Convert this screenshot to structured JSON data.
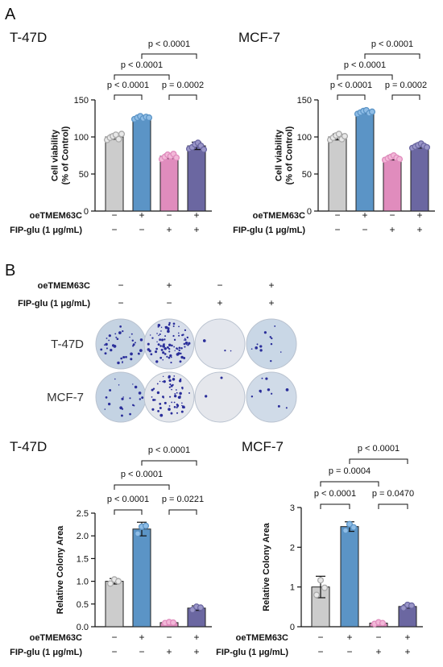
{
  "figure": {
    "panel_a": "A",
    "panel_b": "B",
    "conditions": {
      "oe_label": "oeTMEM63C",
      "fip_label": "FIP-glu (1 μg/mL)",
      "oe": [
        "−",
        "+",
        "−",
        "+"
      ],
      "fip": [
        "−",
        "−",
        "+",
        "+"
      ]
    },
    "colony_rows": [
      "T-47D",
      "MCF-7"
    ],
    "colony_dishes": [
      {
        "bg": "#c5d3e2",
        "dots": 36
      },
      {
        "bg": "#d7deea",
        "dots": 85
      },
      {
        "bg": "#e3e6ed",
        "dots": 3
      },
      {
        "bg": "#c9d7e6",
        "dots": 12
      },
      {
        "bg": "#c4d3e3",
        "dots": 20
      },
      {
        "bg": "#e4e7ec",
        "dots": 60
      },
      {
        "bg": "#e5e7ec",
        "dots": 2
      },
      {
        "bg": "#d0dbe8",
        "dots": 10
      }
    ],
    "dot_color": "#2a2e9a"
  },
  "colors": {
    "bars": [
      "#cccccc",
      "#5b94c6",
      "#e08cbd",
      "#6b67a1"
    ],
    "dots": [
      "#e8e8e8",
      "#8fbde6",
      "#f2b8d8",
      "#9a96c8"
    ]
  },
  "chart_data": [
    {
      "type": "bar",
      "title": "T-47D",
      "ylabel_lines": [
        "Cell viability",
        "(% of Control)"
      ],
      "ylim": [
        0,
        150
      ],
      "yticks": [
        "0",
        "50",
        "100",
        "150"
      ],
      "values": [
        100,
        126,
        74,
        88
      ],
      "errors": [
        3,
        2,
        3,
        5
      ],
      "points": [
        [
          96,
          99,
          101,
          103,
          97,
          104
        ],
        [
          124,
          126,
          128,
          125,
          127,
          126
        ],
        [
          70,
          73,
          76,
          74,
          77,
          72
        ],
        [
          84,
          86,
          90,
          92,
          88,
          83
        ]
      ],
      "comparisons": [
        {
          "a": 0,
          "b": 1,
          "p": "p < 0.0001",
          "level": 0
        },
        {
          "a": 2,
          "b": 3,
          "p": "p = 0.0002",
          "level": 0
        },
        {
          "a": 0,
          "b": 2,
          "p": "p < 0.0001",
          "level": 1
        },
        {
          "a": 1,
          "b": 3,
          "p": "p < 0.0001",
          "level": 2
        }
      ]
    },
    {
      "type": "bar",
      "title": "MCF-7",
      "ylabel_lines": [
        "Cell viability",
        "(% of Control)"
      ],
      "ylim": [
        0,
        150
      ],
      "yticks": [
        "0",
        "50",
        "100",
        "150"
      ],
      "values": [
        100,
        134,
        72,
        88
      ],
      "errors": [
        4,
        2,
        3,
        3
      ],
      "points": [
        [
          96,
          99,
          102,
          104,
          97,
          101
        ],
        [
          131,
          133,
          135,
          136,
          132,
          134
        ],
        [
          69,
          71,
          73,
          75,
          72,
          70
        ],
        [
          85,
          87,
          89,
          91,
          88,
          86
        ]
      ],
      "comparisons": [
        {
          "a": 0,
          "b": 1,
          "p": "p < 0.0001",
          "level": 0
        },
        {
          "a": 2,
          "b": 3,
          "p": "p = 0.0002",
          "level": 0
        },
        {
          "a": 0,
          "b": 2,
          "p": "p < 0.0001",
          "level": 1
        },
        {
          "a": 1,
          "b": 3,
          "p": "p < 0.0001",
          "level": 2
        }
      ]
    },
    {
      "type": "bar",
      "title": "T-47D",
      "ylabel_lines": [
        "Relative Colony Area"
      ],
      "ylim": [
        0,
        2.5
      ],
      "yticks": [
        "0.0",
        "0.5",
        "1.0",
        "1.5",
        "2.0",
        "2.5"
      ],
      "values": [
        1.0,
        2.15,
        0.09,
        0.41
      ],
      "errors": [
        0.06,
        0.15,
        0.02,
        0.05
      ],
      "points": [
        [
          0.95,
          1.04,
          1.0
        ],
        [
          2.05,
          2.2,
          2.22
        ],
        [
          0.08,
          0.1,
          0.09
        ],
        [
          0.37,
          0.44,
          0.42
        ]
      ],
      "comparisons": [
        {
          "a": 0,
          "b": 1,
          "p": "p < 0.0001",
          "level": 0
        },
        {
          "a": 2,
          "b": 3,
          "p": "p = 0.0221",
          "level": 0
        },
        {
          "a": 0,
          "b": 2,
          "p": "p < 0.0001",
          "level": 1
        },
        {
          "a": 1,
          "b": 3,
          "p": "p < 0.0001",
          "level": 2
        }
      ]
    },
    {
      "type": "bar",
      "title": "MCF-7",
      "ylabel_lines": [
        "Relative Colony Area"
      ],
      "ylim": [
        0,
        3
      ],
      "yticks": [
        "0",
        "1",
        "2",
        "3"
      ],
      "values": [
        1.0,
        2.52,
        0.09,
        0.51
      ],
      "errors": [
        0.27,
        0.12,
        0.03,
        0.04
      ],
      "points": [
        [
          0.8,
          1.17,
          0.98
        ],
        [
          2.42,
          2.58,
          2.5
        ],
        [
          0.07,
          0.11,
          0.09
        ],
        [
          0.47,
          0.55,
          0.53
        ]
      ],
      "comparisons": [
        {
          "a": 0,
          "b": 1,
          "p": "p < 0.0001",
          "level": 0
        },
        {
          "a": 2,
          "b": 3,
          "p": "p = 0.0470",
          "level": 0
        },
        {
          "a": 0,
          "b": 2,
          "p": "p = 0.0004",
          "level": 1
        },
        {
          "a": 1,
          "b": 3,
          "p": "p < 0.0001",
          "level": 2
        }
      ]
    }
  ]
}
